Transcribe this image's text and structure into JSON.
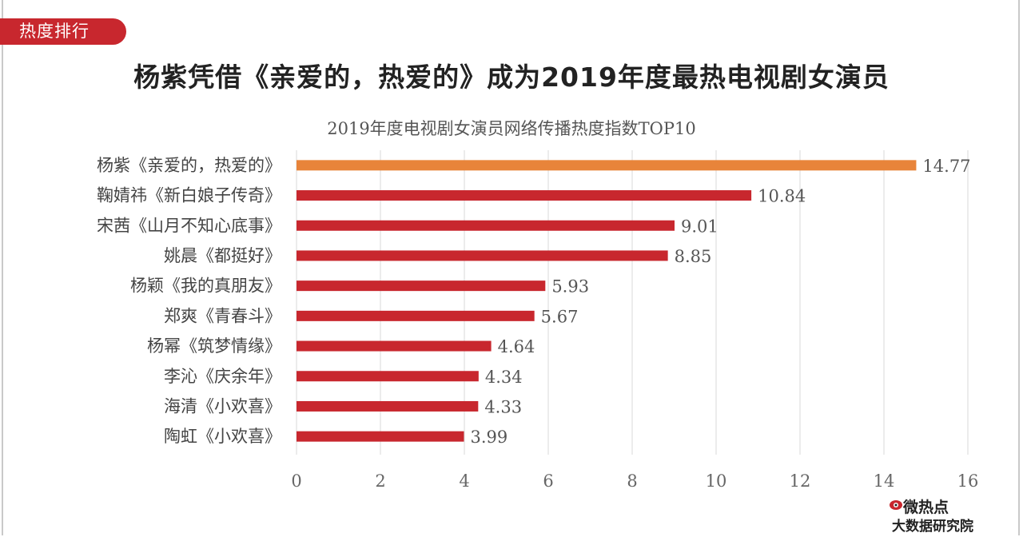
{
  "header": {
    "tag": "热度排行",
    "title": "杨紫凭借《亲爱的，热爱的》成为2019年度最热电视剧女演员"
  },
  "chart_data": {
    "type": "bar",
    "orientation": "horizontal",
    "title": "2019年度电视剧女演员网络传播热度指数TOP10",
    "categories": [
      "杨紫《亲爱的，热爱的》",
      "鞠婧祎《新白娘子传奇》",
      "宋茜《山月不知心底事》",
      "姚晨《都挺好》",
      "杨颖《我的真朋友》",
      "郑爽《青春斗》",
      "杨幂《筑梦情缘》",
      "李沁《庆余年》",
      "海清《小欢喜》",
      "陶虹《小欢喜》"
    ],
    "values": [
      14.77,
      10.84,
      9.01,
      8.85,
      5.93,
      5.67,
      4.64,
      4.34,
      4.33,
      3.99
    ],
    "value_labels": [
      "14.77",
      "10.84",
      "9.01",
      "8.85",
      "5.93",
      "5.67",
      "4.64",
      "4.34",
      "4.33",
      "3.99"
    ],
    "xlim": [
      0,
      16
    ],
    "xticks": [
      0,
      2,
      4,
      6,
      8,
      10,
      12,
      14,
      16
    ],
    "grid": "vertical",
    "colors": {
      "highlight": "#e8843a",
      "default": "#c8272e"
    }
  },
  "logo": {
    "top_text": "微热点",
    "bottom_text": "大数据研究院"
  }
}
